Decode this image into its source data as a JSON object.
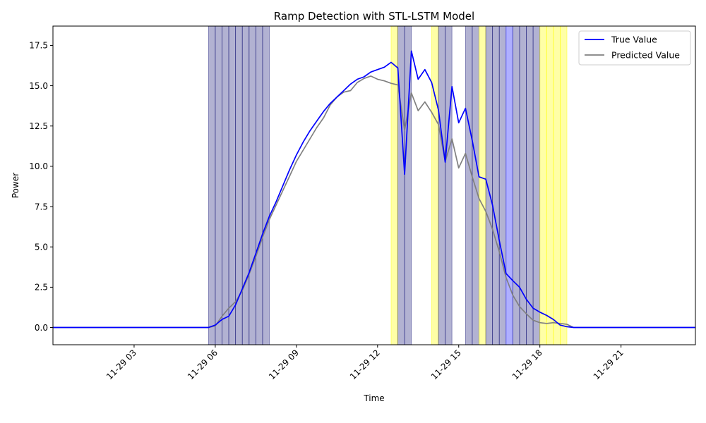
{
  "chart_data": {
    "type": "line",
    "title": "Ramp Detection with STL-LSTM Model",
    "xlabel": "Time",
    "ylabel": "Power",
    "x_unit": "hour of 2024-11-29 (clock time)",
    "xlim": [
      0.0,
      23.75
    ],
    "ylim": [
      -1.07,
      18.7
    ],
    "xticks": [
      {
        "value": 3,
        "label": "11-29 03"
      },
      {
        "value": 6,
        "label": "11-29 06"
      },
      {
        "value": 9,
        "label": "11-29 09"
      },
      {
        "value": 12,
        "label": "11-29 12"
      },
      {
        "value": 15,
        "label": "11-29 15"
      },
      {
        "value": 18,
        "label": "11-29 18"
      },
      {
        "value": 21,
        "label": "11-29 21"
      }
    ],
    "yticks": [
      {
        "value": 0.0,
        "label": "0.0"
      },
      {
        "value": 2.5,
        "label": "2.5"
      },
      {
        "value": 5.0,
        "label": "5.0"
      },
      {
        "value": 7.5,
        "label": "7.5"
      },
      {
        "value": 10.0,
        "label": "10.0"
      },
      {
        "value": 12.5,
        "label": "12.5"
      },
      {
        "value": 15.0,
        "label": "15.0"
      },
      {
        "value": 17.5,
        "label": "17.5"
      }
    ],
    "legend_position": "top-right",
    "grid": false,
    "series": [
      {
        "name": "True Value",
        "color": "#0000ff",
        "points": [
          [
            0.0,
            0.0
          ],
          [
            5.75,
            0.0
          ],
          [
            6.0,
            0.15
          ],
          [
            6.25,
            0.5
          ],
          [
            6.5,
            0.7
          ],
          [
            6.75,
            1.4
          ],
          [
            7.0,
            2.4
          ],
          [
            7.25,
            3.4
          ],
          [
            7.5,
            4.6
          ],
          [
            7.75,
            5.8
          ],
          [
            8.0,
            6.9
          ],
          [
            8.25,
            7.8
          ],
          [
            8.5,
            8.8
          ],
          [
            8.75,
            9.8
          ],
          [
            9.0,
            10.7
          ],
          [
            9.25,
            11.5
          ],
          [
            9.5,
            12.2
          ],
          [
            9.75,
            12.8
          ],
          [
            10.0,
            13.4
          ],
          [
            10.25,
            13.9
          ],
          [
            10.5,
            14.3
          ],
          [
            10.75,
            14.7
          ],
          [
            11.0,
            15.1
          ],
          [
            11.25,
            15.4
          ],
          [
            11.5,
            15.55
          ],
          [
            11.75,
            15.85
          ],
          [
            12.0,
            16.0
          ],
          [
            12.25,
            16.15
          ],
          [
            12.5,
            16.45
          ],
          [
            12.75,
            16.1
          ],
          [
            13.0,
            9.5
          ],
          [
            13.25,
            17.15
          ],
          [
            13.5,
            15.4
          ],
          [
            13.75,
            16.0
          ],
          [
            14.0,
            15.2
          ],
          [
            14.25,
            13.5
          ],
          [
            14.5,
            10.25
          ],
          [
            14.75,
            14.95
          ],
          [
            15.0,
            12.7
          ],
          [
            15.25,
            13.6
          ],
          [
            15.5,
            11.6
          ],
          [
            15.75,
            9.35
          ],
          [
            16.0,
            9.2
          ],
          [
            16.25,
            7.6
          ],
          [
            16.5,
            5.4
          ],
          [
            16.75,
            3.35
          ],
          [
            17.0,
            2.9
          ],
          [
            17.25,
            2.5
          ],
          [
            17.5,
            1.75
          ],
          [
            17.75,
            1.2
          ],
          [
            18.0,
            0.95
          ],
          [
            18.25,
            0.75
          ],
          [
            18.5,
            0.5
          ],
          [
            18.75,
            0.15
          ],
          [
            19.0,
            0.05
          ],
          [
            19.25,
            0.0
          ],
          [
            23.75,
            0.0
          ]
        ]
      },
      {
        "name": "Predicted Value",
        "color": "#808080",
        "points": [
          [
            0.0,
            0.0
          ],
          [
            5.75,
            0.0
          ],
          [
            6.0,
            0.1
          ],
          [
            6.25,
            0.7
          ],
          [
            6.5,
            1.2
          ],
          [
            6.75,
            1.6
          ],
          [
            7.0,
            2.3
          ],
          [
            7.25,
            3.3
          ],
          [
            7.5,
            4.4
          ],
          [
            7.75,
            5.6
          ],
          [
            8.0,
            6.7
          ],
          [
            8.25,
            7.6
          ],
          [
            8.5,
            8.5
          ],
          [
            8.75,
            9.4
          ],
          [
            9.0,
            10.3
          ],
          [
            9.25,
            11.0
          ],
          [
            9.5,
            11.7
          ],
          [
            9.75,
            12.4
          ],
          [
            10.0,
            13.0
          ],
          [
            10.25,
            13.8
          ],
          [
            10.5,
            14.3
          ],
          [
            10.75,
            14.6
          ],
          [
            11.0,
            14.7
          ],
          [
            11.25,
            15.2
          ],
          [
            11.5,
            15.45
          ],
          [
            11.75,
            15.6
          ],
          [
            12.0,
            15.4
          ],
          [
            12.25,
            15.3
          ],
          [
            12.5,
            15.15
          ],
          [
            12.75,
            15.05
          ],
          [
            13.0,
            12.25
          ],
          [
            13.25,
            14.55
          ],
          [
            13.5,
            13.45
          ],
          [
            13.75,
            14.0
          ],
          [
            14.0,
            13.35
          ],
          [
            14.25,
            12.6
          ],
          [
            14.5,
            10.3
          ],
          [
            14.75,
            11.7
          ],
          [
            15.0,
            9.9
          ],
          [
            15.25,
            10.8
          ],
          [
            15.5,
            9.35
          ],
          [
            15.75,
            8.0
          ],
          [
            16.0,
            7.2
          ],
          [
            16.25,
            6.1
          ],
          [
            16.5,
            4.7
          ],
          [
            16.75,
            3.1
          ],
          [
            17.0,
            2.0
          ],
          [
            17.25,
            1.3
          ],
          [
            17.5,
            0.85
          ],
          [
            17.75,
            0.45
          ],
          [
            18.0,
            0.3
          ],
          [
            18.25,
            0.25
          ],
          [
            18.5,
            0.3
          ],
          [
            18.75,
            0.25
          ],
          [
            19.0,
            0.2
          ],
          [
            19.25,
            0.0
          ],
          [
            23.75,
            0.0
          ]
        ]
      }
    ],
    "shaded_regions": [
      {
        "start": 5.75,
        "end": 8.0,
        "color": "#00006b",
        "alpha": 0.3
      },
      {
        "start": 12.5,
        "end": 12.75,
        "color": "#ffff00",
        "alpha": 0.35
      },
      {
        "start": 12.75,
        "end": 13.25,
        "color": "#00006b",
        "alpha": 0.3
      },
      {
        "start": 14.0,
        "end": 14.25,
        "color": "#ffff00",
        "alpha": 0.35
      },
      {
        "start": 14.25,
        "end": 14.75,
        "color": "#00006b",
        "alpha": 0.3
      },
      {
        "start": 15.25,
        "end": 15.75,
        "color": "#00006b",
        "alpha": 0.3
      },
      {
        "start": 15.75,
        "end": 16.0,
        "color": "#ffff00",
        "alpha": 0.35
      },
      {
        "start": 16.0,
        "end": 16.75,
        "color": "#00006b",
        "alpha": 0.3
      },
      {
        "start": 16.75,
        "end": 17.0,
        "color": "#4d4dff",
        "alpha": 0.45
      },
      {
        "start": 17.0,
        "end": 18.0,
        "color": "#00006b",
        "alpha": 0.3
      },
      {
        "start": 18.0,
        "end": 19.0,
        "color": "#ffff00",
        "alpha": 0.35
      }
    ]
  }
}
